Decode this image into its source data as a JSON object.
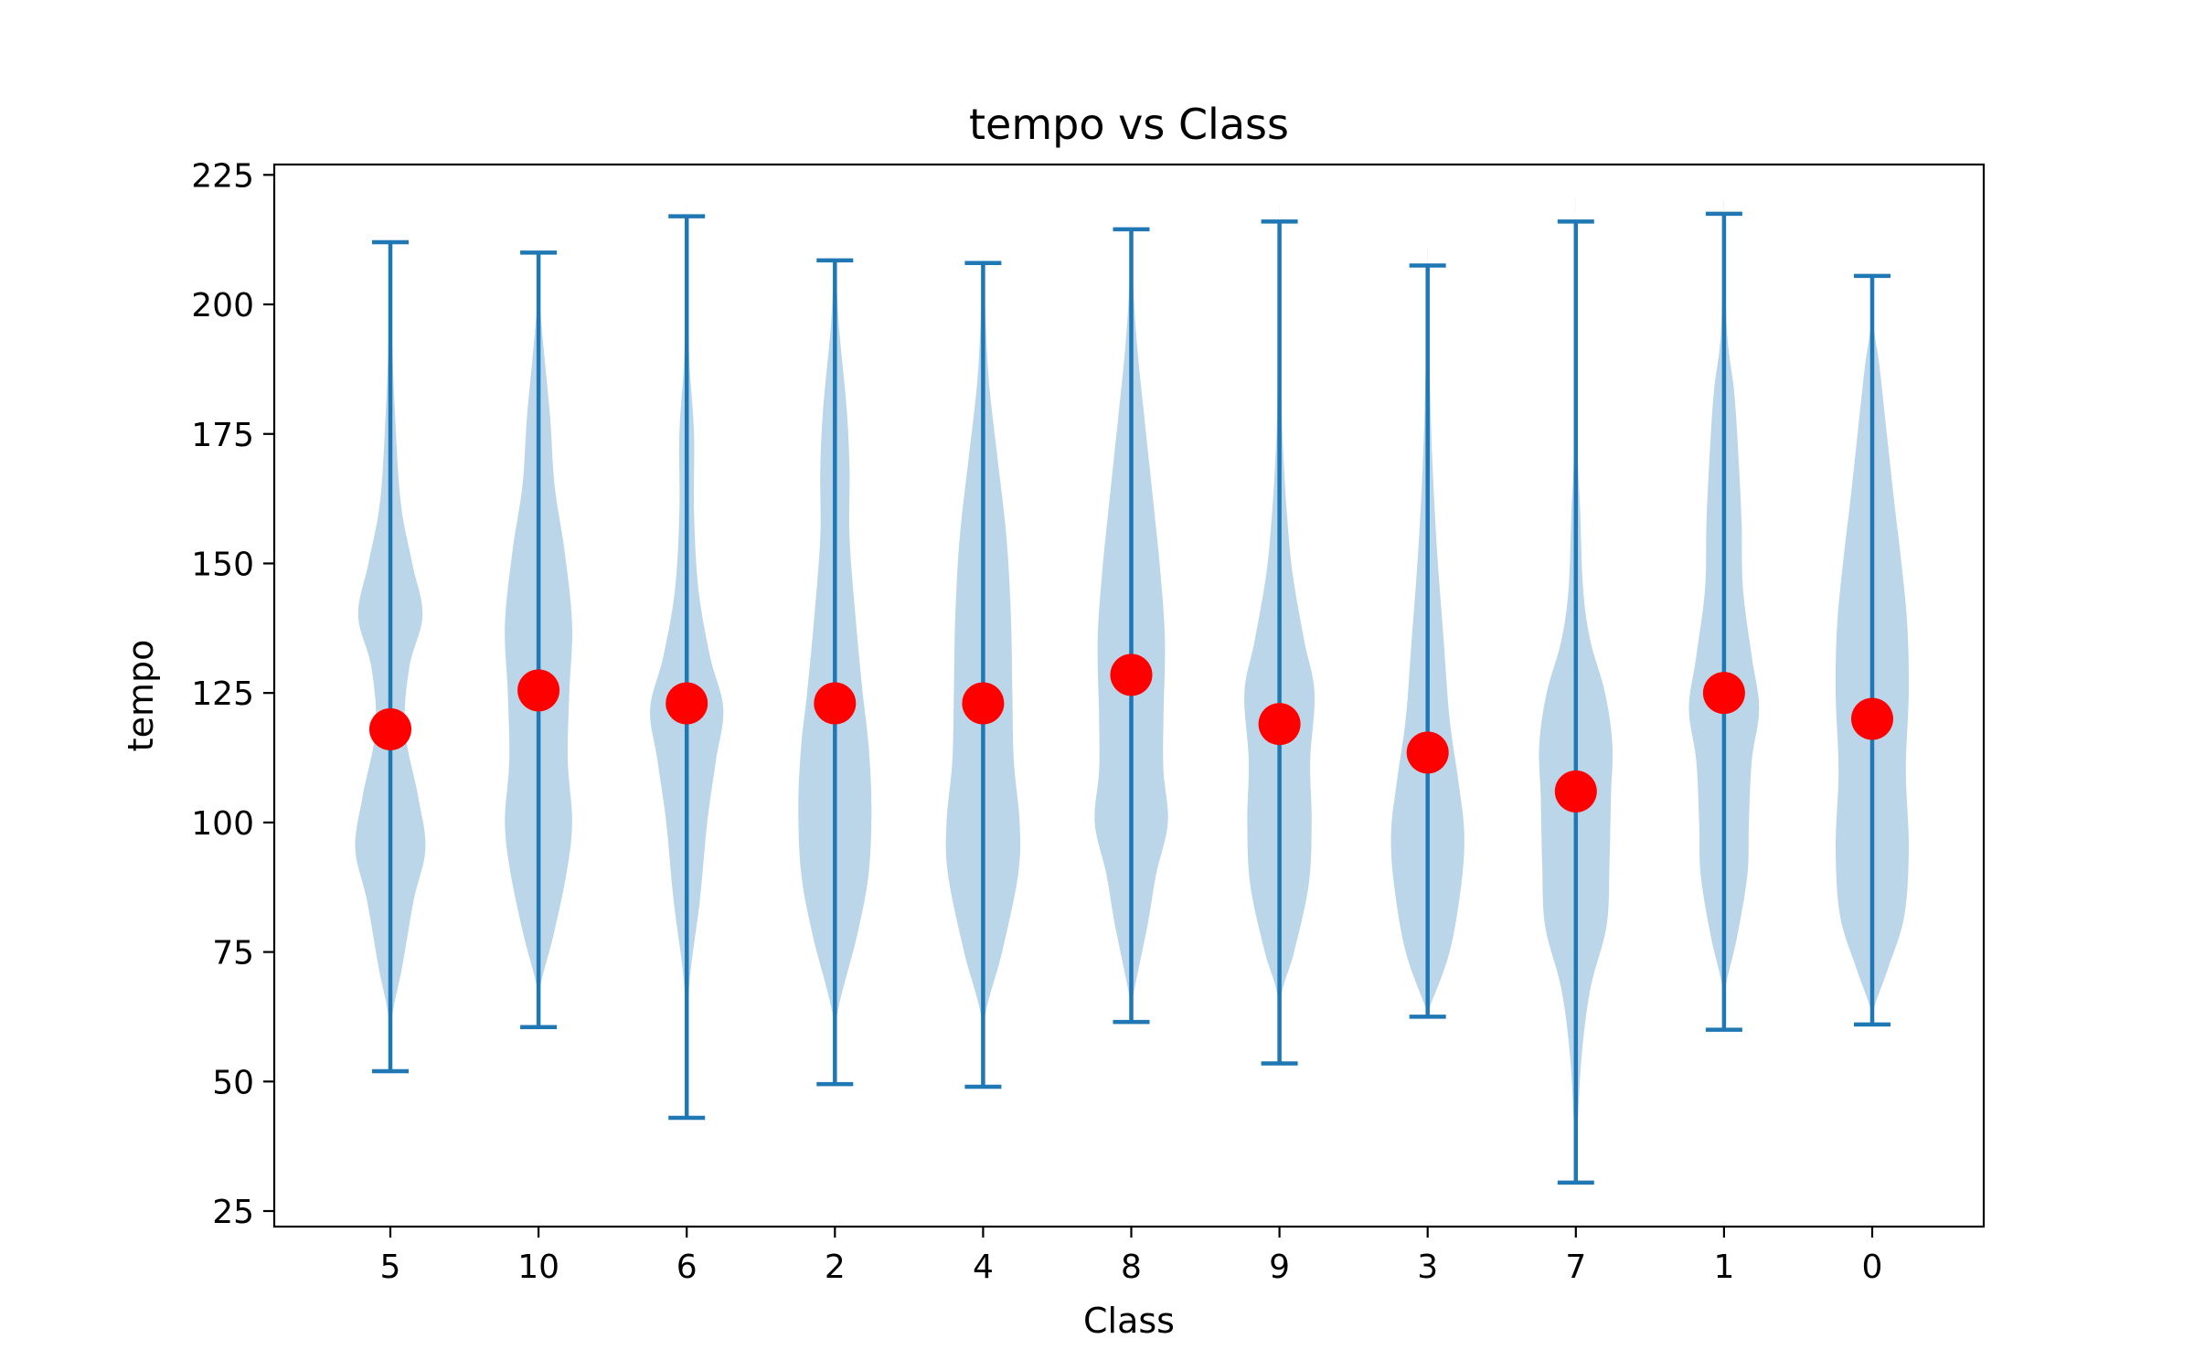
{
  "chart_data": {
    "type": "violin",
    "title": "tempo vs Class",
    "xlabel": "Class",
    "ylabel": "tempo",
    "ylim": [
      22,
      227
    ],
    "yticks": [
      25,
      50,
      75,
      100,
      125,
      150,
      175,
      200,
      225
    ],
    "categories": [
      "5",
      "10",
      "6",
      "2",
      "4",
      "8",
      "9",
      "3",
      "7",
      "1",
      "0"
    ],
    "series": [
      {
        "values": [
          {
            "min": 52,
            "max": 212,
            "mean": 118,
            "width": [
              [
                62,
                0.02
              ],
              [
                72,
                0.16
              ],
              [
                85,
                0.32
              ],
              [
                95,
                0.48
              ],
              [
                105,
                0.38
              ],
              [
                118,
                0.2
              ],
              [
                130,
                0.26
              ],
              [
                140,
                0.44
              ],
              [
                150,
                0.3
              ],
              [
                162,
                0.14
              ],
              [
                180,
                0.06
              ],
              [
                195,
                0.02
              ]
            ]
          },
          {
            "min": 60.5,
            "max": 210,
            "mean": 125.5,
            "width": [
              [
                68,
                0.02
              ],
              [
                78,
                0.2
              ],
              [
                90,
                0.38
              ],
              [
                100,
                0.46
              ],
              [
                112,
                0.4
              ],
              [
                125,
                0.42
              ],
              [
                138,
                0.46
              ],
              [
                152,
                0.36
              ],
              [
                165,
                0.22
              ],
              [
                178,
                0.16
              ],
              [
                190,
                0.08
              ],
              [
                200,
                0.02
              ]
            ]
          },
          {
            "min": 43,
            "max": 217,
            "mean": 123,
            "width": [
              [
                66,
                0.02
              ],
              [
                85,
                0.18
              ],
              [
                100,
                0.28
              ],
              [
                112,
                0.4
              ],
              [
                122,
                0.5
              ],
              [
                132,
                0.32
              ],
              [
                145,
                0.16
              ],
              [
                160,
                0.1
              ],
              [
                175,
                0.1
              ],
              [
                188,
                0.04
              ],
              [
                198,
                0.02
              ]
            ]
          },
          {
            "min": 49.5,
            "max": 208.5,
            "mean": 123,
            "width": [
              [
                62,
                0.02
              ],
              [
                78,
                0.3
              ],
              [
                90,
                0.46
              ],
              [
                103,
                0.5
              ],
              [
                115,
                0.46
              ],
              [
                125,
                0.38
              ],
              [
                140,
                0.28
              ],
              [
                155,
                0.2
              ],
              [
                168,
                0.2
              ],
              [
                180,
                0.16
              ],
              [
                195,
                0.06
              ],
              [
                205,
                0.02
              ]
            ]
          },
          {
            "min": 49,
            "max": 208,
            "mean": 123,
            "width": [
              [
                62,
                0.02
              ],
              [
                75,
                0.26
              ],
              [
                90,
                0.48
              ],
              [
                100,
                0.5
              ],
              [
                112,
                0.42
              ],
              [
                125,
                0.4
              ],
              [
                140,
                0.38
              ],
              [
                155,
                0.32
              ],
              [
                170,
                0.2
              ],
              [
                185,
                0.08
              ],
              [
                198,
                0.03
              ]
            ]
          },
          {
            "min": 61.5,
            "max": 214.5,
            "mean": 128.5,
            "width": [
              [
                66,
                0.02
              ],
              [
                80,
                0.22
              ],
              [
                90,
                0.34
              ],
              [
                100,
                0.5
              ],
              [
                110,
                0.44
              ],
              [
                120,
                0.44
              ],
              [
                135,
                0.46
              ],
              [
                148,
                0.4
              ],
              [
                162,
                0.3
              ],
              [
                178,
                0.18
              ],
              [
                192,
                0.08
              ],
              [
                205,
                0.02
              ]
            ]
          },
          {
            "min": 53.5,
            "max": 216,
            "mean": 119,
            "width": [
              [
                66,
                0.02
              ],
              [
                75,
                0.2
              ],
              [
                88,
                0.4
              ],
              [
                100,
                0.44
              ],
              [
                112,
                0.42
              ],
              [
                125,
                0.48
              ],
              [
                135,
                0.34
              ],
              [
                148,
                0.18
              ],
              [
                160,
                0.1
              ],
              [
                175,
                0.04
              ],
              [
                190,
                0.02
              ]
            ]
          },
          {
            "min": 62.5,
            "max": 207.5,
            "mean": 113.5,
            "width": [
              [
                64,
                0.02
              ],
              [
                75,
                0.3
              ],
              [
                88,
                0.46
              ],
              [
                98,
                0.5
              ],
              [
                108,
                0.42
              ],
              [
                120,
                0.3
              ],
              [
                135,
                0.22
              ],
              [
                150,
                0.14
              ],
              [
                165,
                0.08
              ],
              [
                180,
                0.04
              ]
            ]
          },
          {
            "min": 30.5,
            "max": 216,
            "mean": 106,
            "width": [
              [
                40,
                0.02
              ],
              [
                55,
                0.08
              ],
              [
                68,
                0.2
              ],
              [
                80,
                0.42
              ],
              [
                92,
                0.46
              ],
              [
                105,
                0.48
              ],
              [
                115,
                0.5
              ],
              [
                125,
                0.4
              ],
              [
                135,
                0.2
              ],
              [
                145,
                0.1
              ],
              [
                160,
                0.06
              ],
              [
                175,
                0.02
              ]
            ]
          },
          {
            "min": 60,
            "max": 217.5,
            "mean": 125,
            "width": [
              [
                68,
                0.02
              ],
              [
                78,
                0.18
              ],
              [
                90,
                0.32
              ],
              [
                100,
                0.34
              ],
              [
                112,
                0.38
              ],
              [
                122,
                0.48
              ],
              [
                132,
                0.38
              ],
              [
                145,
                0.26
              ],
              [
                158,
                0.24
              ],
              [
                170,
                0.2
              ],
              [
                183,
                0.14
              ],
              [
                195,
                0.04
              ]
            ]
          },
          {
            "min": 61,
            "max": 205.5,
            "mean": 120,
            "width": [
              [
                64,
                0.02
              ],
              [
                72,
                0.22
              ],
              [
                82,
                0.44
              ],
              [
                95,
                0.5
              ],
              [
                110,
                0.46
              ],
              [
                125,
                0.5
              ],
              [
                138,
                0.48
              ],
              [
                150,
                0.4
              ],
              [
                162,
                0.3
              ],
              [
                175,
                0.2
              ],
              [
                188,
                0.1
              ],
              [
                196,
                0.02
              ]
            ]
          }
        ]
      }
    ],
    "colors": {
      "body": "#1f77b4",
      "body_opacity": 0.3,
      "line": "#1f77b4",
      "marker": "#ff0000",
      "axes": "#000000"
    },
    "grid": false,
    "legend": "none"
  }
}
